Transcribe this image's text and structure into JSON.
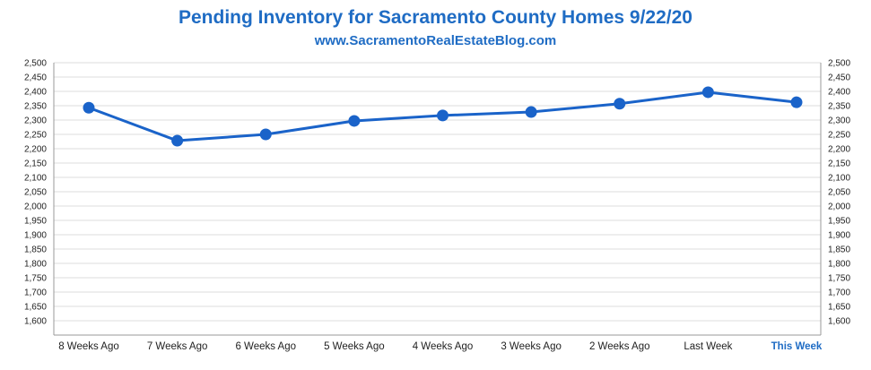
{
  "title": "Pending Inventory for Sacramento County Homes 9/22/20",
  "subtitle": "www.SacramentoRealEstateBlog.com",
  "colors": {
    "accent": "#1f6cc4",
    "line": "#1a63c9",
    "grid": "#dddddd",
    "axis": "#999999",
    "text": "#222222"
  },
  "chart_data": {
    "type": "line",
    "title": "Pending Inventory for Sacramento County Homes 9/22/20",
    "subtitle": "www.SacramentoRealEstateBlog.com",
    "xlabel": "",
    "ylabel": "",
    "categories": [
      "8 Weeks Ago",
      "7 Weeks Ago",
      "6 Weeks Ago",
      "5 Weeks Ago",
      "4 Weeks Ago",
      "3 Weeks Ago",
      "2 Weeks Ago",
      "Last Week",
      "This Week"
    ],
    "highlight_category": "This Week",
    "series": [
      {
        "name": "Pending Inventory",
        "values": [
          2343,
          2228,
          2250,
          2297,
          2316,
          2328,
          2357,
          2397,
          2362
        ]
      }
    ],
    "ylim": [
      1550,
      2500
    ],
    "yticks": [
      1600,
      1650,
      1700,
      1750,
      1800,
      1850,
      1900,
      1950,
      2000,
      2050,
      2100,
      2150,
      2200,
      2250,
      2300,
      2350,
      2400,
      2450,
      2500
    ],
    "y_axis_both_sides": true,
    "grid": true,
    "legend": "none"
  }
}
